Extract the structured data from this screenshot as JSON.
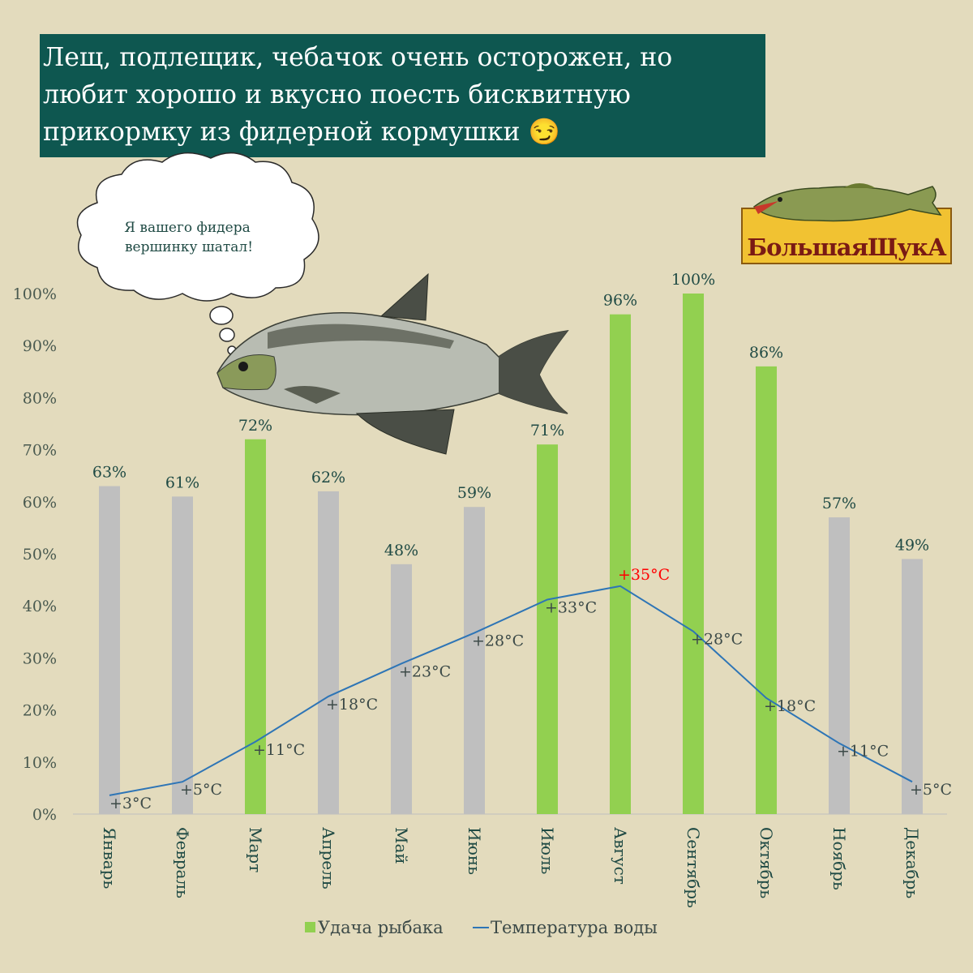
{
  "title": {
    "lines": [
      "Лещ, подлещик, чебачок очень осторожен, но",
      "любит хорошо и вкусно поесть бисквитную",
      "прикормку из фидерной кормушки 😏"
    ]
  },
  "speech_bubble": {
    "lines": [
      "Я вашего фидера",
      "вершинку шатал!"
    ]
  },
  "logo": {
    "text": "БольшаяЩукА",
    "icon": "pike-fish-icon"
  },
  "illustration": {
    "icon": "bream-fish-icon"
  },
  "colors": {
    "background": "#e3dbbd",
    "title_bg": "#0e5750",
    "bar_highlight": "#92d050",
    "bar_normal": "#bfbfbf",
    "line": "#2e75b6",
    "temp_peak": "#ff0000"
  },
  "chart_data": {
    "type": "bar",
    "categories": [
      "Январь",
      "Февраль",
      "Март",
      "Апрель",
      "Май",
      "Июнь",
      "Июль",
      "Август",
      "Сентябрь",
      "Октябрь",
      "Ноябрь",
      "Декабрь"
    ],
    "ylim": [
      0,
      100
    ],
    "yticks": [
      "0%",
      "10%",
      "20%",
      "30%",
      "40%",
      "50%",
      "60%",
      "70%",
      "80%",
      "90%",
      "100%"
    ],
    "legend_position": "bottom",
    "series": [
      {
        "name": "Удача рыбака",
        "type": "bar",
        "values": [
          63,
          61,
          72,
          62,
          48,
          59,
          71,
          96,
          100,
          86,
          57,
          49
        ],
        "labels": [
          "63%",
          "61%",
          "72%",
          "62%",
          "48%",
          "59%",
          "71%",
          "96%",
          "100%",
          "86%",
          "57%",
          "49%"
        ],
        "highlighted": [
          false,
          false,
          true,
          false,
          false,
          false,
          true,
          true,
          true,
          true,
          false,
          false
        ]
      },
      {
        "name": "Температура воды",
        "type": "line",
        "values": [
          3.6,
          6.2,
          13.9,
          22.6,
          28.9,
          34.8,
          41.2,
          43.8,
          35.1,
          22.3,
          13.6,
          6.2
        ],
        "labels": [
          "+3°C",
          "+5°C",
          "+11°C",
          "+18°C",
          "+23°C",
          "+28°C",
          "+33°C",
          "+35°C",
          "+28°C",
          "+18°C",
          "+11°C",
          "+5°C"
        ],
        "peak_index": 7
      }
    ]
  }
}
